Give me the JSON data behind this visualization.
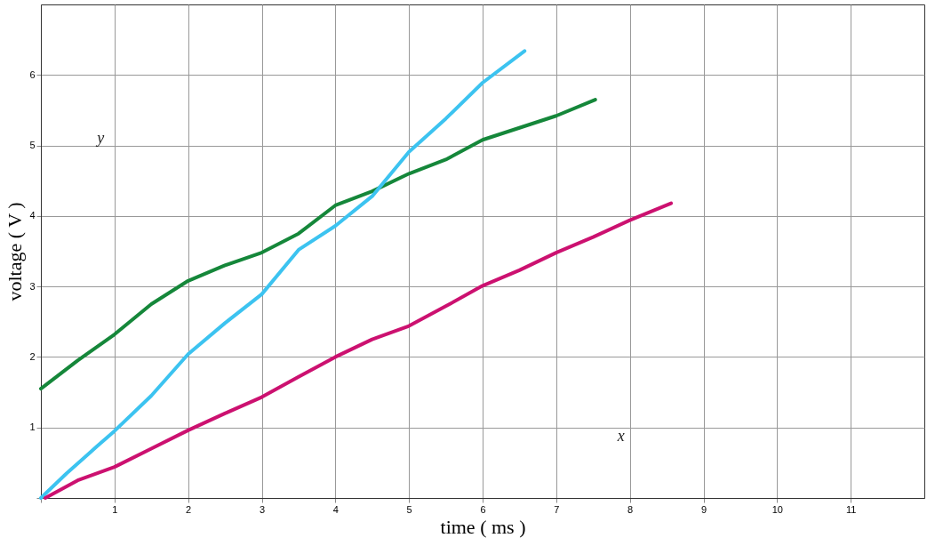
{
  "chart_data": {
    "type": "line",
    "xlabel": "time ( ms )",
    "ylabel": "voltage ( V )",
    "xlim": [
      0,
      12
    ],
    "ylim": [
      0,
      7
    ],
    "xticks": [
      {
        "value": 0,
        "label": null
      },
      1,
      2,
      3,
      4,
      5,
      6,
      7,
      8,
      9,
      10,
      11
    ],
    "yticks": [
      {
        "value": 0,
        "label": null
      },
      1,
      2,
      3,
      4,
      5,
      6
    ],
    "grid": true,
    "legend": false,
    "marker": "none",
    "line_style": "solid",
    "annotations": [
      "x",
      "y"
    ],
    "series": [
      {
        "color": "#15873a",
        "x": [
          0,
          0.5,
          1,
          1.5,
          2,
          2.5,
          3,
          3.5,
          4,
          4.5,
          5,
          5.5,
          6,
          6.5,
          7,
          7.53
        ],
        "values": [
          1.55,
          1.95,
          2.32,
          2.75,
          3.08,
          3.3,
          3.48,
          3.75,
          4.15,
          4.35,
          4.6,
          4.8,
          5.08,
          5.25,
          5.42,
          5.65
        ]
      },
      {
        "color": "#3cc3f0",
        "x": [
          0,
          0.35,
          0.76,
          1,
          1.5,
          2,
          2.5,
          3,
          3.5,
          4,
          4.5,
          5,
          5.5,
          6,
          6.57
        ],
        "values": [
          0,
          0.35,
          0.73,
          0.95,
          1.45,
          2.04,
          2.48,
          2.89,
          3.52,
          3.86,
          4.28,
          4.91,
          5.38,
          5.89,
          6.34
        ]
      },
      {
        "color": "#cc1170",
        "x": [
          0.06,
          0.5,
          1,
          1.5,
          2,
          2.5,
          3,
          3.5,
          4,
          4.5,
          5,
          5.5,
          6,
          6.5,
          7,
          7.5,
          8,
          8.56
        ],
        "values": [
          0,
          0.25,
          0.44,
          0.7,
          0.96,
          1.2,
          1.43,
          1.72,
          2.0,
          2.25,
          2.44,
          2.72,
          3.01,
          3.23,
          3.48,
          3.7,
          3.94,
          4.18
        ]
      }
    ]
  }
}
